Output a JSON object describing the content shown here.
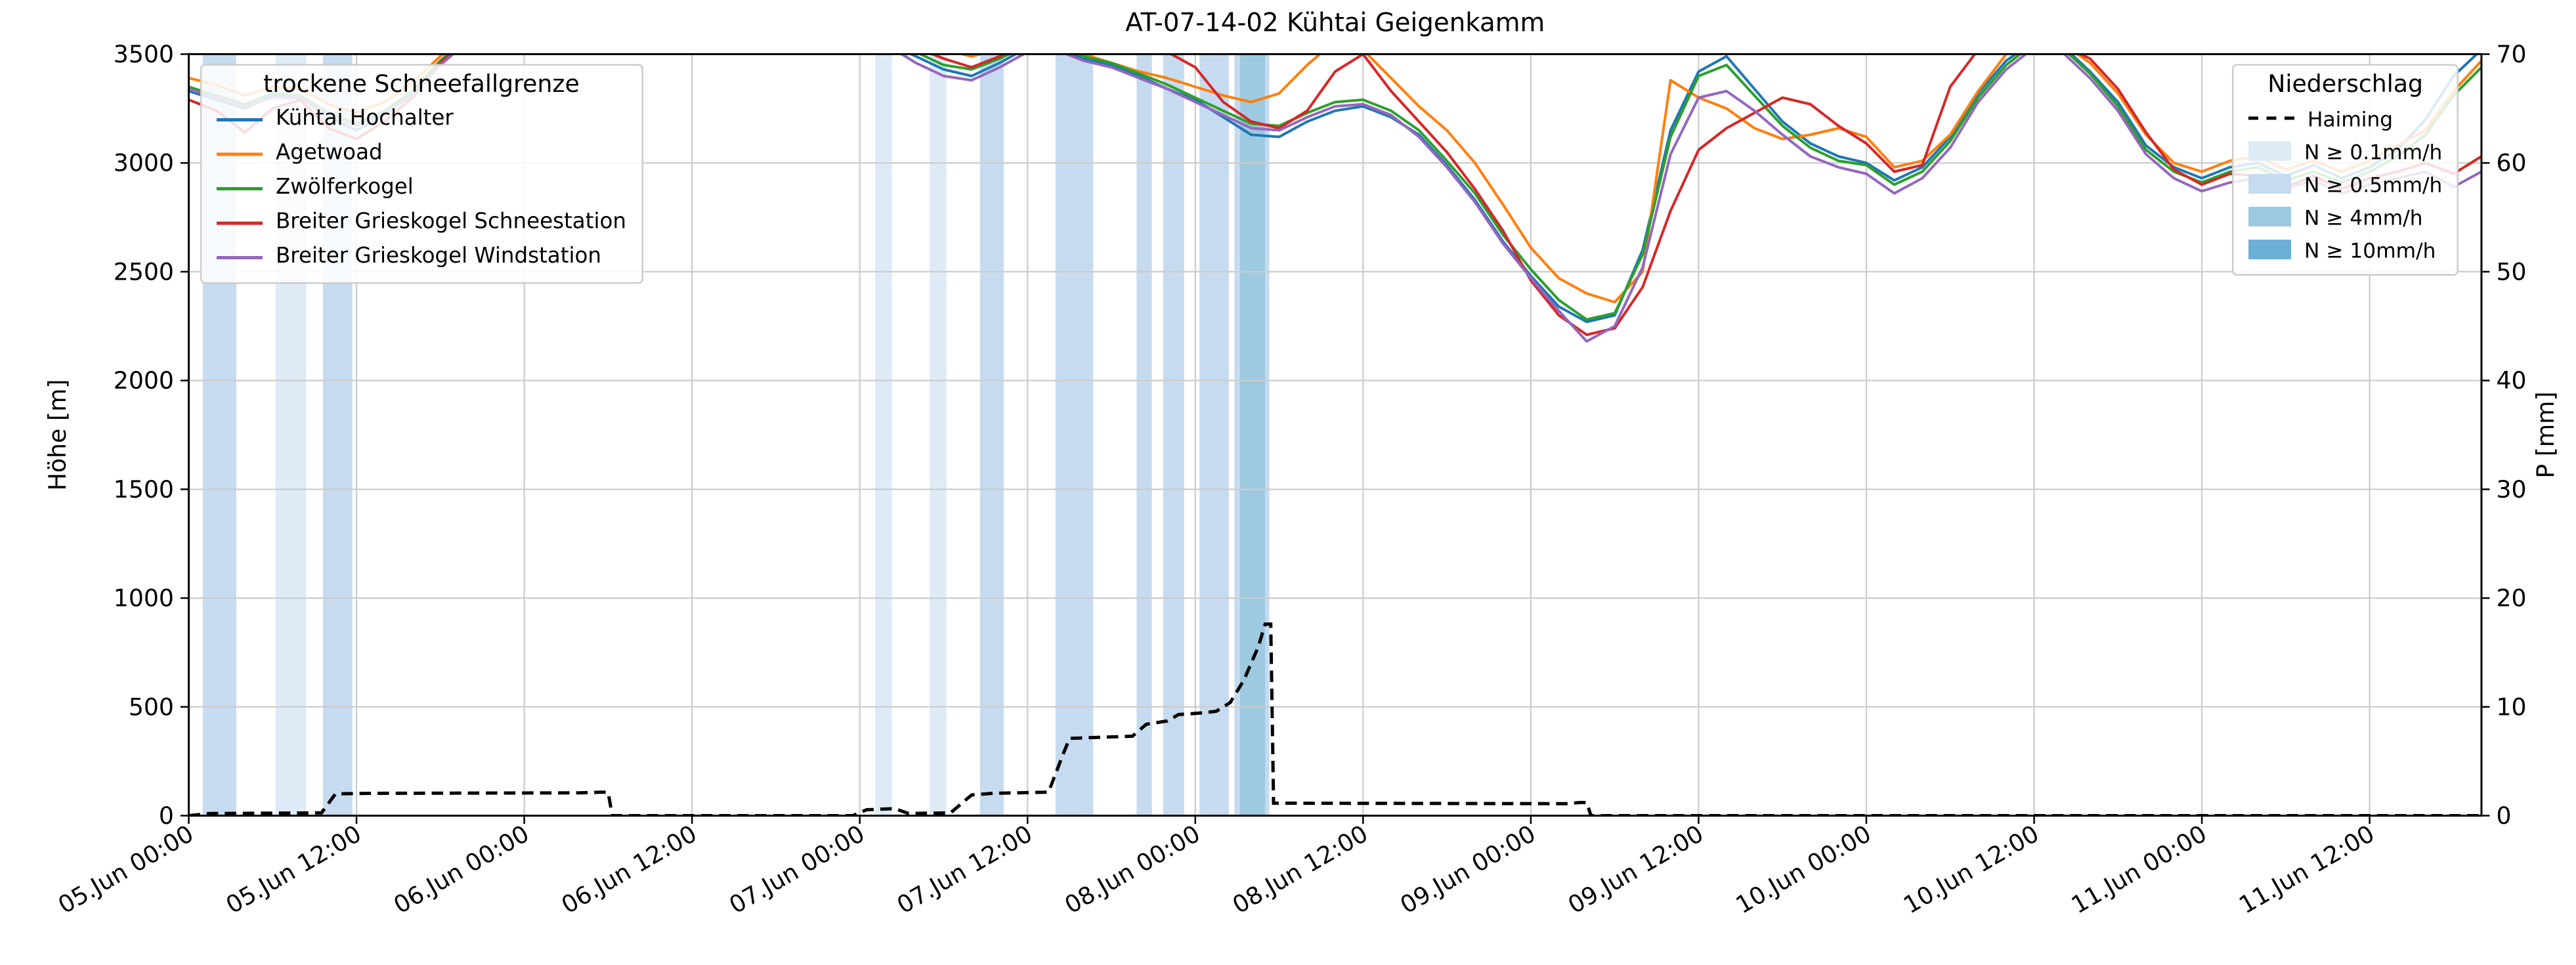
{
  "title": "AT-07-14-02 Kühtai Geigenkamm",
  "chart_data": {
    "type": "line",
    "title": "AT-07-14-02 Kühtai Geigenkamm",
    "x_axis": {
      "description": "time, hours since 05 Jun 00:00",
      "min": 0,
      "max": 164,
      "tick_interval_hours": 12,
      "tick_times": [
        0,
        12,
        24,
        36,
        48,
        60,
        72,
        84,
        96,
        108,
        120,
        132,
        144,
        156
      ],
      "tick_labels": [
        "05.Jun 00:00",
        "05.Jun 12:00",
        "06.Jun 00:00",
        "06.Jun 12:00",
        "07.Jun 00:00",
        "07.Jun 12:00",
        "08.Jun 00:00",
        "08.Jun 12:00",
        "09.Jun 00:00",
        "09.Jun 12:00",
        "10.Jun 00:00",
        "10.Jun 12:00",
        "11.Jun 00:00",
        "11.Jun 12:00"
      ]
    },
    "y_left": {
      "label": "Höhe [m]",
      "min": 0,
      "max": 3500,
      "ticks": [
        0,
        500,
        1000,
        1500,
        2000,
        2500,
        3000,
        3500
      ]
    },
    "y_right": {
      "label": "P [mm]",
      "min": 0,
      "max": 70,
      "ticks": [
        0,
        10,
        20,
        30,
        40,
        50,
        60,
        70
      ]
    },
    "grid": true,
    "series": [
      {
        "name": "Kühtai Hochalter",
        "color": "#1f77b4",
        "t_start": 0,
        "t_step": 2,
        "values": [
          3330,
          3290,
          3250,
          3310,
          3300,
          3210,
          3150,
          3220,
          3320,
          3460,
          3570,
          3640,
          3680,
          3650,
          3700,
          3670,
          3650,
          3700,
          3680,
          3650,
          3700,
          3660,
          3690,
          3660,
          3630,
          3550,
          3490,
          3430,
          3400,
          3460,
          3530,
          3520,
          3480,
          3450,
          3400,
          3340,
          3290,
          3210,
          3130,
          3120,
          3190,
          3240,
          3260,
          3210,
          3130,
          2990,
          2830,
          2640,
          2480,
          2340,
          2270,
          2300,
          2600,
          3150,
          3420,
          3490,
          3340,
          3190,
          3090,
          3030,
          3000,
          2920,
          2980,
          3120,
          3320,
          3470,
          3560,
          3540,
          3420,
          3280,
          3080,
          2980,
          2930,
          2980,
          3000,
          2940,
          2990,
          2930,
          2980,
          3060,
          3200,
          3400,
          3520
        ]
      },
      {
        "name": "Agetwoad",
        "color": "#ff7f0e",
        "t_start": 0,
        "t_step": 2,
        "values": [
          3390,
          3360,
          3310,
          3350,
          3340,
          3270,
          3230,
          3280,
          3370,
          3490,
          3590,
          3660,
          3700,
          3670,
          3720,
          3690,
          3670,
          3720,
          3700,
          3670,
          3720,
          3680,
          3710,
          3680,
          3650,
          3610,
          3560,
          3520,
          3490,
          3520,
          3560,
          3550,
          3500,
          3460,
          3420,
          3390,
          3350,
          3310,
          3280,
          3320,
          3450,
          3560,
          3520,
          3390,
          3260,
          3150,
          3000,
          2810,
          2610,
          2470,
          2400,
          2360,
          2500,
          3380,
          3300,
          3250,
          3160,
          3110,
          3130,
          3160,
          3120,
          2980,
          3010,
          3130,
          3330,
          3500,
          3570,
          3550,
          3460,
          3320,
          3130,
          3000,
          2960,
          3010,
          3030,
          2970,
          3010,
          2960,
          3010,
          3080,
          3150,
          3330,
          3470
        ]
      },
      {
        "name": "Zwölferkogel",
        "color": "#2ca02c",
        "t_start": 0,
        "t_step": 2,
        "values": [
          3350,
          3310,
          3270,
          3320,
          3310,
          3230,
          3180,
          3240,
          3330,
          3470,
          3580,
          3650,
          3690,
          3660,
          3710,
          3680,
          3660,
          3710,
          3690,
          3660,
          3710,
          3670,
          3700,
          3670,
          3640,
          3570,
          3510,
          3450,
          3430,
          3480,
          3540,
          3530,
          3490,
          3460,
          3410,
          3360,
          3300,
          3240,
          3180,
          3170,
          3230,
          3280,
          3290,
          3240,
          3150,
          3010,
          2860,
          2670,
          2510,
          2370,
          2280,
          2310,
          2580,
          3120,
          3400,
          3450,
          3310,
          3170,
          3070,
          3010,
          2990,
          2900,
          2960,
          3100,
          3300,
          3450,
          3550,
          3530,
          3410,
          3260,
          3060,
          2960,
          2910,
          2960,
          2980,
          2920,
          2960,
          2910,
          2960,
          3030,
          3130,
          3310,
          3440
        ]
      },
      {
        "name": "Breiter Grieskogel Schneestation",
        "color": "#d62728",
        "t_start": 0,
        "t_step": 2,
        "values": [
          3290,
          3240,
          3140,
          3250,
          3290,
          3160,
          3110,
          3190,
          3300,
          3460,
          3570,
          3640,
          3680,
          3650,
          3700,
          3670,
          3650,
          3700,
          3680,
          3650,
          3700,
          3660,
          3690,
          3660,
          3630,
          3590,
          3530,
          3480,
          3440,
          3490,
          3550,
          3560,
          3530,
          3510,
          3530,
          3510,
          3440,
          3280,
          3190,
          3160,
          3240,
          3420,
          3500,
          3330,
          3190,
          3050,
          2880,
          2690,
          2460,
          2300,
          2210,
          2240,
          2430,
          2780,
          3060,
          3160,
          3230,
          3300,
          3270,
          3170,
          3090,
          2960,
          2990,
          3350,
          3520,
          3560,
          3570,
          3540,
          3480,
          3340,
          3140,
          2970,
          2900,
          2950,
          2940,
          2890,
          2940,
          2880,
          2930,
          2960,
          3000,
          2950,
          3030
        ]
      },
      {
        "name": "Breiter Grieskogel Windstation",
        "color": "#9467bd",
        "t_start": 0,
        "t_step": 2,
        "values": [
          3340,
          3300,
          3260,
          3300,
          3300,
          3220,
          3170,
          3230,
          3310,
          3450,
          3560,
          3630,
          3670,
          3640,
          3690,
          3660,
          3640,
          3690,
          3670,
          3640,
          3690,
          3650,
          3680,
          3650,
          3620,
          3540,
          3460,
          3400,
          3380,
          3440,
          3510,
          3520,
          3470,
          3440,
          3390,
          3340,
          3280,
          3220,
          3160,
          3150,
          3210,
          3260,
          3270,
          3220,
          3120,
          2980,
          2820,
          2630,
          2470,
          2320,
          2180,
          2250,
          2520,
          3040,
          3300,
          3330,
          3240,
          3130,
          3030,
          2980,
          2950,
          2860,
          2930,
          3070,
          3280,
          3430,
          3530,
          3510,
          3390,
          3240,
          3040,
          2930,
          2870,
          2910,
          2930,
          2880,
          2920,
          2860,
          2900,
          2930,
          2960,
          2890,
          2960
        ]
      }
    ],
    "precip_line": {
      "name": "Haiming",
      "color": "#000000",
      "style": "dashed",
      "axis": "right",
      "points": [
        [
          0,
          0
        ],
        [
          1.5,
          0.2
        ],
        [
          9.5,
          0.25
        ],
        [
          10.5,
          2.0
        ],
        [
          13,
          2.05
        ],
        [
          28,
          2.1
        ],
        [
          29.5,
          2.15
        ],
        [
          30,
          2.15
        ],
        [
          30.3,
          0
        ],
        [
          47.5,
          0
        ],
        [
          48.5,
          0.55
        ],
        [
          50.5,
          0.65
        ],
        [
          51.5,
          0.2
        ],
        [
          54.5,
          0.25
        ],
        [
          56,
          1.9
        ],
        [
          57.5,
          2.05
        ],
        [
          61.5,
          2.15
        ],
        [
          62.5,
          5.5
        ],
        [
          63,
          7.1
        ],
        [
          65,
          7.2
        ],
        [
          67.5,
          7.3
        ],
        [
          68.5,
          8.4
        ],
        [
          70,
          8.7
        ],
        [
          70.8,
          9.3
        ],
        [
          72.5,
          9.45
        ],
        [
          73.5,
          9.6
        ],
        [
          74.5,
          10.4
        ],
        [
          75.5,
          12.5
        ],
        [
          76.5,
          15.5
        ],
        [
          77,
          17.6
        ],
        [
          77.4,
          17.6
        ],
        [
          77.6,
          1.15
        ],
        [
          98.5,
          1.1
        ],
        [
          99.5,
          1.2
        ],
        [
          100,
          1.2
        ],
        [
          100.3,
          0
        ],
        [
          164,
          0
        ]
      ]
    },
    "precip_bands": [
      {
        "t0": 1.0,
        "t1": 3.4,
        "level": "ge05"
      },
      {
        "t0": 6.2,
        "t1": 8.4,
        "level": "ge01"
      },
      {
        "t0": 9.6,
        "t1": 11.7,
        "level": "ge05"
      },
      {
        "t0": 49.1,
        "t1": 50.3,
        "level": "ge01"
      },
      {
        "t0": 53.0,
        "t1": 54.2,
        "level": "ge01"
      },
      {
        "t0": 56.6,
        "t1": 58.3,
        "level": "ge05"
      },
      {
        "t0": 62.0,
        "t1": 64.7,
        "level": "ge05"
      },
      {
        "t0": 67.8,
        "t1": 68.9,
        "level": "ge05"
      },
      {
        "t0": 69.7,
        "t1": 71.2,
        "level": "ge05"
      },
      {
        "t0": 72.3,
        "t1": 74.4,
        "level": "ge05"
      },
      {
        "t0": 74.8,
        "t1": 77.3,
        "level": "ge05"
      },
      {
        "t0": 75.2,
        "t1": 77.0,
        "level": "ge4"
      }
    ],
    "band_colors": {
      "ge01": "#deebf7",
      "ge05": "#c6dbef",
      "ge4": "#9ecae1",
      "ge10": "#6baed6"
    },
    "legend_snowline": {
      "title": "trockene Schneefallgrenze"
    },
    "legend_precip": {
      "title": "Niederschlag",
      "items": [
        "Haiming",
        "N ≥ 0.1mm/h",
        "N ≥ 0.5mm/h",
        "N ≥ 4mm/h",
        "N ≥ 10mm/h"
      ]
    }
  }
}
